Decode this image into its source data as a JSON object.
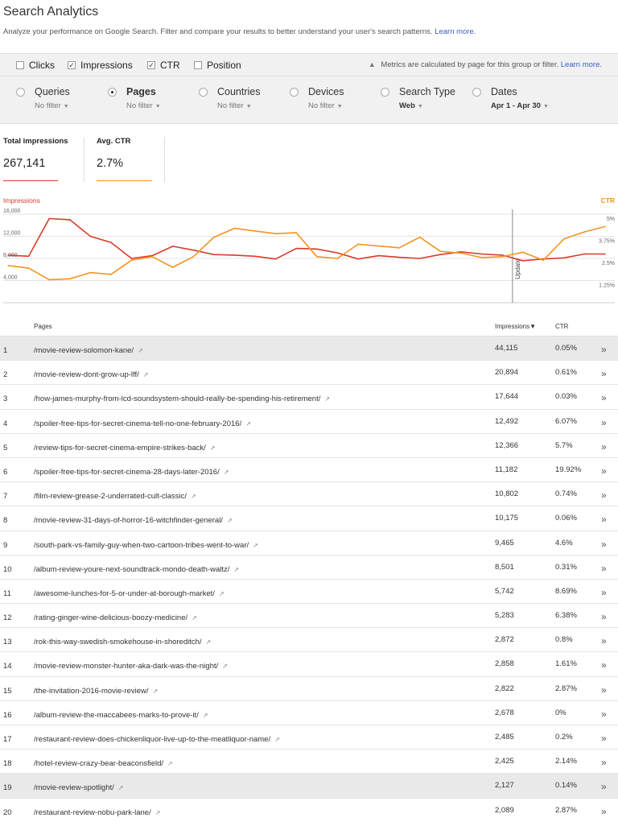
{
  "header": {
    "title": "Search Analytics",
    "subtitle": "Analyze your performance on Google Search. Filter and compare your results to better understand your user's search patterns.",
    "learn_more": "Learn more."
  },
  "metrics": {
    "items": [
      {
        "label": "Clicks",
        "checked": false
      },
      {
        "label": "Impressions",
        "checked": true
      },
      {
        "label": "CTR",
        "checked": true
      },
      {
        "label": "Position",
        "checked": false
      }
    ],
    "note": "Metrics are calculated by page for this group or filter.",
    "note_link": "Learn more."
  },
  "filters": [
    {
      "label": "Queries",
      "sub": "No filter",
      "selected": false
    },
    {
      "label": "Pages",
      "sub": "No filter",
      "selected": true
    },
    {
      "label": "Countries",
      "sub": "No filter",
      "selected": false
    },
    {
      "label": "Devices",
      "sub": "No filter",
      "selected": false
    },
    {
      "label": "Search Type",
      "sub": "Web",
      "selected": false
    },
    {
      "label": "Dates",
      "sub": "Apr 1 - Apr 30",
      "selected": false
    }
  ],
  "summary": {
    "impressions_label": "Total impressions",
    "impressions_value": "267,141",
    "ctr_label": "Avg. CTR",
    "ctr_value": "2.7%"
  },
  "colors": {
    "impressions": "#d93b2b",
    "ctr": "#f5931e"
  },
  "chart_data": {
    "type": "line",
    "left_label": "Impressions",
    "right_label": "CTR",
    "left_ticks": [
      "16,000",
      "12,000",
      "8,000",
      "4,000"
    ],
    "right_ticks": [
      "5%",
      "3.75%",
      "2.5%",
      "1.25%"
    ],
    "ylim_left": [
      0,
      16000
    ],
    "ylim_right": [
      0,
      5
    ],
    "update_label": "Update",
    "update_index": 25,
    "series": [
      {
        "name": "Impressions",
        "axis": "left",
        "values": [
          8600,
          8400,
          15200,
          15000,
          12000,
          10900,
          8000,
          8500,
          10200,
          9500,
          8700,
          8600,
          8400,
          7900,
          9800,
          9700,
          9000,
          7900,
          8500,
          8200,
          8000,
          8700,
          9200,
          8800,
          8600,
          7600,
          7900,
          8100,
          8800,
          8800
        ]
      },
      {
        "name": "CTR",
        "axis": "right",
        "values": [
          2.1,
          1.95,
          1.3,
          1.35,
          1.7,
          1.6,
          2.4,
          2.6,
          2.0,
          2.6,
          3.7,
          4.2,
          4.05,
          3.9,
          3.95,
          2.6,
          2.5,
          3.3,
          3.2,
          3.1,
          3.7,
          2.9,
          2.8,
          2.55,
          2.6,
          2.85,
          2.4,
          3.6,
          4.0,
          4.3
        ]
      }
    ]
  },
  "table": {
    "col_pages": "Pages",
    "col_impressions": "Impressions",
    "sort_arrow": "▼",
    "col_ctr": "CTR",
    "rows": [
      {
        "num": "1",
        "page": "/movie-review-solomon-kane/",
        "impressions": "44,115",
        "ctr": "0.05%",
        "hl": true
      },
      {
        "num": "2",
        "page": "/movie-review-dont-grow-up-lff/",
        "impressions": "20,894",
        "ctr": "0.61%"
      },
      {
        "num": "3",
        "page": "/how-james-murphy-from-lcd-soundsystem-should-really-be-spending-his-retirement/",
        "impressions": "17,644",
        "ctr": "0.03%"
      },
      {
        "num": "4",
        "page": "/spoiler-free-tips-for-secret-cinema-tell-no-one-february-2016/",
        "impressions": "12,492",
        "ctr": "6.07%"
      },
      {
        "num": "5",
        "page": "/review-tips-for-secret-cinema-empire-strikes-back/",
        "impressions": "12,366",
        "ctr": "5.7%"
      },
      {
        "num": "6",
        "page": "/spoiler-free-tips-for-secret-cinema-28-days-later-2016/",
        "impressions": "11,182",
        "ctr": "19.92%"
      },
      {
        "num": "7",
        "page": "/film-review-grease-2-underrated-cult-classic/",
        "impressions": "10,802",
        "ctr": "0.74%"
      },
      {
        "num": "8",
        "page": "/movie-review-31-days-of-horror-16-witchfinder-general/",
        "impressions": "10,175",
        "ctr": "0.06%"
      },
      {
        "num": "9",
        "page": "/south-park-vs-family-guy-when-two-cartoon-tribes-went-to-war/",
        "impressions": "9,465",
        "ctr": "4.6%"
      },
      {
        "num": "10",
        "page": "/album-review-youre-next-soundtrack-mondo-death-waltz/",
        "impressions": "8,501",
        "ctr": "0.31%"
      },
      {
        "num": "11",
        "page": "/awesome-lunches-for-5-or-under-at-borough-market/",
        "impressions": "5,742",
        "ctr": "8.69%"
      },
      {
        "num": "12",
        "page": "/rating-ginger-wine-delicious-boozy-medicine/",
        "impressions": "5,283",
        "ctr": "6.38%"
      },
      {
        "num": "13",
        "page": "/rok-this-way-swedish-smokehouse-in-shoreditch/",
        "impressions": "2,872",
        "ctr": "0.8%"
      },
      {
        "num": "14",
        "page": "/movie-review-monster-hunter-aka-dark-was-the-night/",
        "impressions": "2,858",
        "ctr": "1.61%"
      },
      {
        "num": "15",
        "page": "/the-invitation-2016-movie-review/",
        "impressions": "2,822",
        "ctr": "2.87%"
      },
      {
        "num": "16",
        "page": "/album-review-the-maccabees-marks-to-prove-it/",
        "impressions": "2,678",
        "ctr": "0%"
      },
      {
        "num": "17",
        "page": "/restaurant-review-does-chickenliquor-live-up-to-the-meatliquor-name/",
        "impressions": "2,485",
        "ctr": "0.2%"
      },
      {
        "num": "18",
        "page": "/hotel-review-crazy-bear-beaconsfield/",
        "impressions": "2,425",
        "ctr": "2.14%"
      },
      {
        "num": "19",
        "page": "/movie-review-spotlight/",
        "impressions": "2,127",
        "ctr": "0.14%",
        "hl": true
      },
      {
        "num": "20",
        "page": "/restaurant-review-nobu-park-lane/",
        "impressions": "2,089",
        "ctr": "2.87%"
      }
    ]
  }
}
